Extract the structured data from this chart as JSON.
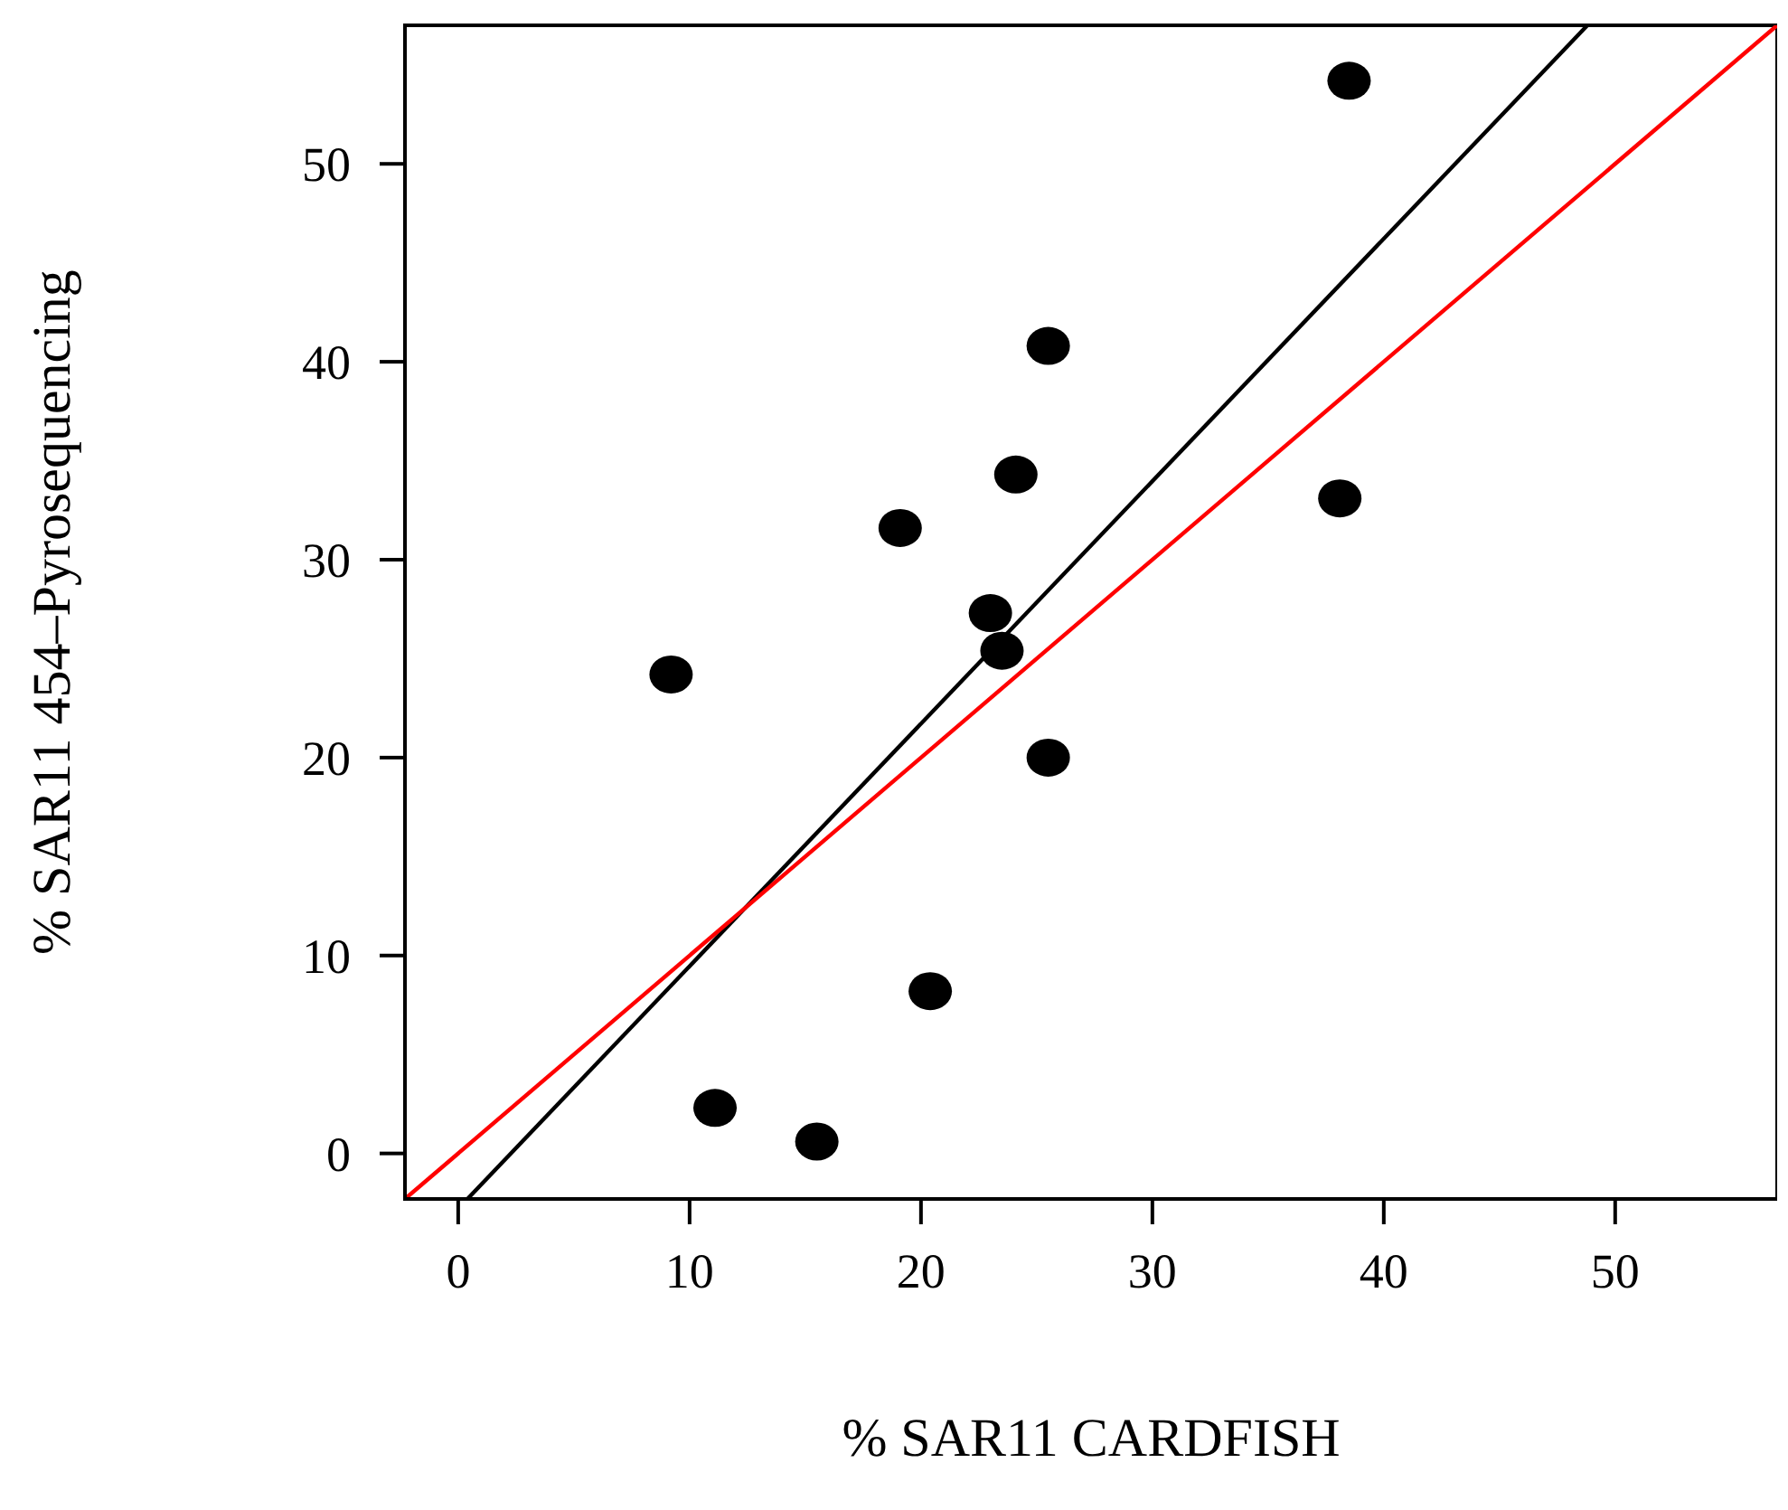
{
  "chart_data": {
    "type": "scatter",
    "xlabel": "% SAR11 CARDFISH",
    "ylabel": "% SAR11 454–Pyrosequencing",
    "x": [
      9.2,
      11.1,
      15.5,
      19.1,
      20.4,
      23.0,
      23.5,
      24.1,
      25.5,
      25.5,
      38.1,
      38.5
    ],
    "series": [
      {
        "marker": "circle",
        "color": "#000000",
        "values": [
          24.2,
          2.3,
          0.6,
          31.6,
          8.2,
          27.3,
          25.4,
          34.3,
          40.8,
          20.0,
          33.1,
          54.2
        ]
      },
      {
        "type": "line",
        "color": "#000000",
        "x": [
          0.4,
          48.8
        ],
        "values": [
          -2.3,
          57
        ]
      },
      {
        "type": "line",
        "color": "#ff0000",
        "x": [
          -2.3,
          57
        ],
        "values": [
          -2.3,
          57
        ]
      }
    ],
    "xlim": [
      -2.3,
      57
    ],
    "ylim": [
      -2.3,
      57
    ],
    "xticks": [
      0,
      10,
      20,
      30,
      40,
      50
    ],
    "yticks": [
      0,
      10,
      20,
      30,
      40,
      50
    ],
    "line_style": "solid",
    "grid": false
  }
}
